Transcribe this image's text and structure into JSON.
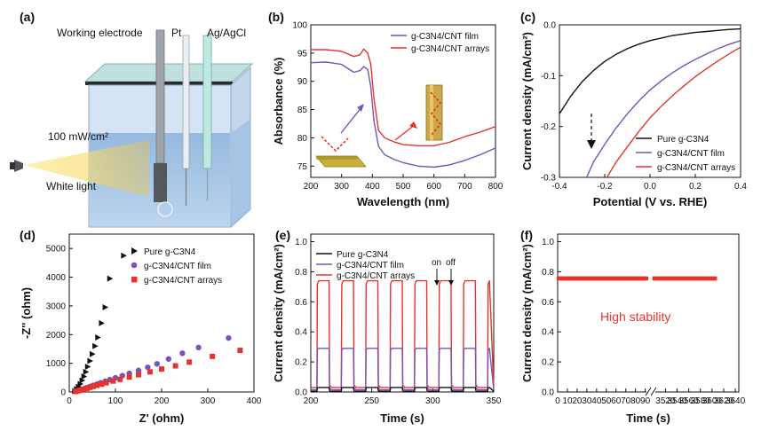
{
  "panel_letters": [
    "(a)",
    "(b)",
    "(c)",
    "(d)",
    "(e)",
    "(f)"
  ],
  "colors": {
    "black": "#111111",
    "purple": "#7b52b5",
    "red": "#e8332c",
    "gold": "#f1c232",
    "annotation_red": "#e8332c"
  },
  "panel_a": {
    "labels": {
      "working_electrode": "Working electrode",
      "pt": "Pt",
      "ag_agcl": "Ag/AgCl",
      "intensity": "100 mW/cm²",
      "light": "White light"
    }
  },
  "panel_f_annotation": "High stability",
  "panel_e_annotation": {
    "on": "on",
    "off": "off"
  },
  "chart_data": [
    {
      "panel": "b",
      "type": "line",
      "xlabel": "Wavelength (nm)",
      "ylabel": "Absorbance (%)",
      "xlim": [
        200,
        800
      ],
      "ylim": [
        73,
        100
      ],
      "xticks": [
        200,
        300,
        400,
        500,
        600,
        700,
        800
      ],
      "yticks": [
        75,
        80,
        85,
        90,
        95,
        100
      ],
      "legend_position": "top-right",
      "series": [
        {
          "name": "g-C3N4/CNT film",
          "color": "#7b52b5",
          "x": [
            200,
            250,
            300,
            340,
            360,
            372,
            385,
            395,
            405,
            420,
            440,
            470,
            500,
            550,
            600,
            650,
            700,
            750,
            800
          ],
          "y": [
            93.3,
            93.4,
            93.0,
            91.6,
            91.9,
            92.6,
            92.1,
            89.0,
            83.0,
            78.5,
            77.0,
            76.2,
            75.6,
            75.0,
            74.8,
            75.2,
            76.0,
            77.0,
            78.2
          ]
        },
        {
          "name": "g-C3N4/CNT arrays",
          "color": "#e8332c",
          "x": [
            200,
            250,
            300,
            340,
            360,
            372,
            385,
            395,
            405,
            420,
            440,
            470,
            500,
            550,
            600,
            650,
            700,
            750,
            800
          ],
          "y": [
            95.6,
            95.6,
            95.3,
            94.4,
            94.7,
            95.7,
            95.0,
            93.0,
            87.0,
            81.3,
            80.0,
            79.3,
            78.8,
            78.6,
            78.6,
            79.2,
            80.2,
            81.0,
            82.0
          ]
        }
      ]
    },
    {
      "panel": "c",
      "type": "line",
      "xlabel": "Potential (V vs. RHE)",
      "ylabel": "Current density (mA/cm²)",
      "xlim": [
        -0.4,
        0.4
      ],
      "ylim": [
        -0.3,
        0.0
      ],
      "xticks": [
        -0.4,
        -0.2,
        0.0,
        0.2,
        0.4
      ],
      "yticks": [
        -0.3,
        -0.2,
        -0.1,
        0.0
      ],
      "legend_position": "bottom-right",
      "series": [
        {
          "name": "Pure g-C3N4",
          "color": "#111111",
          "x": [
            -0.4,
            -0.35,
            -0.3,
            -0.25,
            -0.2,
            -0.15,
            -0.1,
            -0.05,
            0.0,
            0.05,
            0.1,
            0.15,
            0.2,
            0.25,
            0.3,
            0.35,
            0.4
          ],
          "y": [
            -0.175,
            -0.14,
            -0.112,
            -0.09,
            -0.072,
            -0.058,
            -0.047,
            -0.038,
            -0.031,
            -0.026,
            -0.021,
            -0.018,
            -0.015,
            -0.013,
            -0.011,
            -0.009,
            -0.008
          ]
        },
        {
          "name": "g-C3N4/CNT film",
          "color": "#7b52b5",
          "x": [
            -0.28,
            -0.25,
            -0.2,
            -0.15,
            -0.1,
            -0.05,
            0.0,
            0.05,
            0.1,
            0.15,
            0.2,
            0.25,
            0.3,
            0.35,
            0.4
          ],
          "y": [
            -0.3,
            -0.27,
            -0.235,
            -0.203,
            -0.175,
            -0.15,
            -0.128,
            -0.11,
            -0.094,
            -0.08,
            -0.068,
            -0.057,
            -0.047,
            -0.038,
            -0.031
          ]
        },
        {
          "name": "g-C3N4/CNT arrays",
          "color": "#e8332c",
          "x": [
            -0.19,
            -0.15,
            -0.1,
            -0.05,
            0.0,
            0.05,
            0.1,
            0.15,
            0.2,
            0.25,
            0.3,
            0.35,
            0.4
          ],
          "y": [
            -0.3,
            -0.27,
            -0.24,
            -0.21,
            -0.183,
            -0.16,
            -0.139,
            -0.12,
            -0.102,
            -0.086,
            -0.071,
            -0.057,
            -0.044
          ]
        }
      ]
    },
    {
      "panel": "d",
      "type": "scatter",
      "xlabel": "Z' (ohm)",
      "ylabel": "-Z'' (ohm)",
      "xlim": [
        0,
        400
      ],
      "ylim": [
        0,
        5500
      ],
      "xticks": [
        0,
        100,
        200,
        300,
        400
      ],
      "yticks": [
        0,
        1000,
        2000,
        3000,
        4000,
        5000
      ],
      "legend_position": "top-right",
      "series": [
        {
          "name": "Pure g-C3N4",
          "color": "#111111",
          "marker": "triangle-right",
          "x": [
            12,
            16,
            20,
            24,
            28,
            32,
            36,
            40,
            45,
            50,
            56,
            62,
            70,
            78,
            88,
            118
          ],
          "y": [
            30,
            100,
            180,
            280,
            400,
            540,
            700,
            880,
            1080,
            1320,
            1600,
            1900,
            2400,
            2950,
            3950,
            4750
          ]
        },
        {
          "name": "g-C3N4/CNT film",
          "color": "#7b52b5",
          "marker": "circle",
          "x": [
            14,
            20,
            26,
            32,
            38,
            45,
            52,
            60,
            68,
            78,
            88,
            100,
            115,
            130,
            150,
            170,
            190,
            215,
            245,
            280,
            345
          ],
          "y": [
            20,
            50,
            80,
            115,
            150,
            190,
            230,
            275,
            320,
            375,
            430,
            495,
            570,
            650,
            750,
            860,
            980,
            1150,
            1350,
            1550,
            1880
          ]
        },
        {
          "name": "g-C3N4/CNT arrays",
          "color": "#e8332c",
          "marker": "square",
          "x": [
            14,
            20,
            26,
            32,
            38,
            45,
            52,
            60,
            70,
            80,
            95,
            110,
            130,
            150,
            175,
            200,
            230,
            260,
            310,
            370
          ],
          "y": [
            15,
            40,
            65,
            95,
            125,
            160,
            195,
            230,
            270,
            320,
            380,
            440,
            520,
            600,
            700,
            800,
            910,
            1040,
            1240,
            1450
          ]
        }
      ]
    },
    {
      "panel": "e",
      "type": "line",
      "xlabel": "Time (s)",
      "ylabel": "Current density (mA/cm²)",
      "xlim": [
        200,
        350
      ],
      "ylim": [
        0,
        1.05
      ],
      "xticks": [
        200,
        250,
        300,
        350
      ],
      "yticks": [
        0.0,
        0.2,
        0.4,
        0.6,
        0.8,
        1.0
      ],
      "legend_position": "top-left",
      "cycle_start_s": 205,
      "cycle_period_s": 20,
      "on_duration_s": 10,
      "cycles": 8,
      "series": [
        {
          "name": "Pure g-C3N4",
          "color": "#111111",
          "on": 0.03,
          "off": 0.005
        },
        {
          "name": "g-C3N4/CNT film",
          "color": "#7b52b5",
          "on": 0.29,
          "off": 0.015
        },
        {
          "name": "g-C3N4/CNT arrays",
          "color": "#e8332c",
          "on": 0.74,
          "off": 0.03
        }
      ]
    },
    {
      "panel": "f",
      "type": "scatter",
      "xlabel": "Time (s)",
      "ylabel": "Current density (mA/cm²)",
      "ylim": [
        0,
        1.05
      ],
      "yticks": [
        0.0,
        0.2,
        0.4,
        0.6,
        0.8,
        1.0
      ],
      "xticks_left": [
        0,
        10,
        20,
        30,
        40,
        50,
        60,
        70,
        80,
        90
      ],
      "xticks_right": [
        3520,
        3540,
        3560,
        3580,
        3600,
        3620,
        3640
      ],
      "axis_break": true,
      "series": [
        {
          "name": "g-C3N4/CNT arrays",
          "color": "#e8332c",
          "marker": "square",
          "value": 0.755,
          "x_left": [
            1,
            3,
            5,
            7,
            9,
            11,
            13,
            15,
            17,
            19,
            21,
            23,
            25,
            27,
            29,
            31,
            33,
            35,
            37,
            39,
            41,
            43,
            45,
            47,
            49,
            51,
            53,
            55,
            57,
            59,
            61,
            63,
            65,
            67,
            69,
            71,
            73,
            75,
            77,
            79,
            81,
            83,
            85,
            87,
            89,
            91
          ],
          "x_right": [
            3501,
            3505,
            3509,
            3513,
            3517,
            3521,
            3525,
            3529,
            3533,
            3537,
            3541,
            3545,
            3549,
            3553,
            3557,
            3561,
            3565,
            3569,
            3573,
            3577,
            3581,
            3585,
            3589,
            3593,
            3597,
            3601,
            3605
          ]
        }
      ]
    }
  ]
}
